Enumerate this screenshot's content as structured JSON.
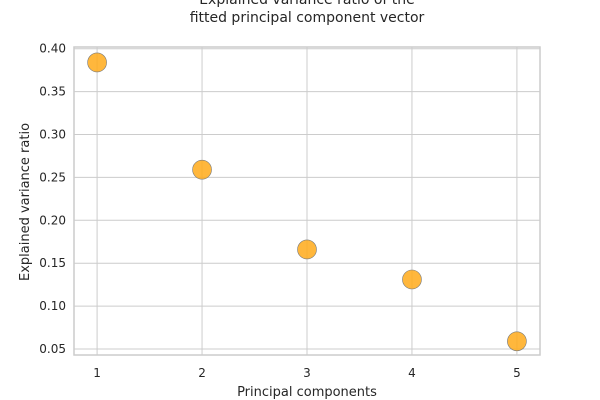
{
  "chart_data": {
    "type": "scatter",
    "title_lines": [
      "Explained variance ratio of the",
      "fitted principal component vector"
    ],
    "xlabel": "Principal components",
    "ylabel": "Explained variance ratio",
    "x": [
      1,
      2,
      3,
      4,
      5
    ],
    "y": [
      0.384,
      0.259,
      0.166,
      0.131,
      0.059
    ],
    "xlim": [
      0.78,
      5.22
    ],
    "ylim": [
      0.043,
      0.402
    ],
    "xticks": [
      1,
      2,
      3,
      4,
      5
    ],
    "xtick_labels": [
      "1",
      "2",
      "3",
      "4",
      "5"
    ],
    "yticks": [
      0.05,
      0.1,
      0.15,
      0.2,
      0.25,
      0.3,
      0.35,
      0.4
    ],
    "ytick_labels": [
      "0.05",
      "0.10",
      "0.15",
      "0.20",
      "0.25",
      "0.30",
      "0.35",
      "0.40"
    ],
    "grid": true,
    "legend": false,
    "marker_color": "#ffaa1a",
    "marker_edge_color": "#7a7a7a"
  }
}
